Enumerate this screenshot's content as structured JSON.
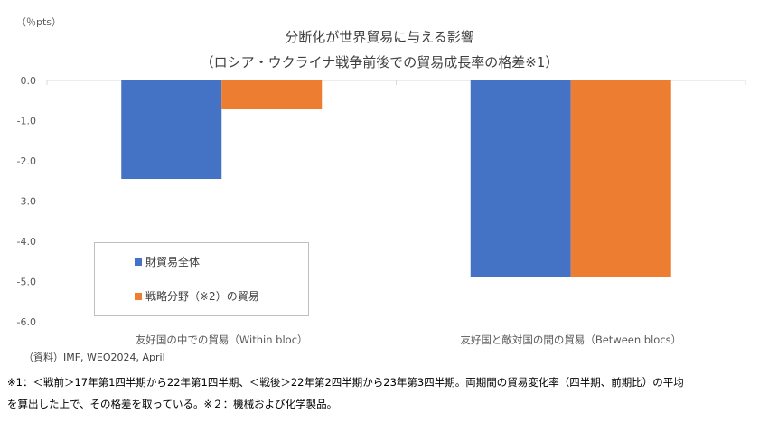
{
  "chart_data": {
    "type": "bar",
    "title": "分断化が世界貿易に与える影響",
    "subtitle": "（ロシア・ウクライナ戦争前後での貿易成長率の格差※1）",
    "unit_label": "（％pts）",
    "categories": [
      "友好国の中での貿易（Within bloc）",
      "友好国と敵対国の間の貿易（Between blocs）"
    ],
    "series": [
      {
        "name": "財貿易全体",
        "values": [
          -2.45,
          -4.88
        ],
        "color": "#4472C4"
      },
      {
        "name": "戦略分野（※2）の貿易",
        "values": [
          -0.72,
          -4.88
        ],
        "color": "#ED7D31"
      }
    ],
    "ylim": [
      -6.0,
      0.0
    ],
    "yticks": [
      "0.0",
      "-1.0",
      "-2.0",
      "-3.0",
      "-4.0",
      "-5.0",
      "-6.0"
    ],
    "grid": false,
    "legend_position": "bottom-left"
  },
  "footer": {
    "source": "（資料）IMF, WEO2024, April",
    "note_line1": "※1：＜戦前＞17年第1四半期から22年第1四半期、＜戦後＞22年第2四半期から23年第3四半期。両期間の貿易変化率（四半期、前期比）の平均",
    "note_line2": "を算出した上で、その格差を取っている。※２：機械および化学製品。"
  }
}
